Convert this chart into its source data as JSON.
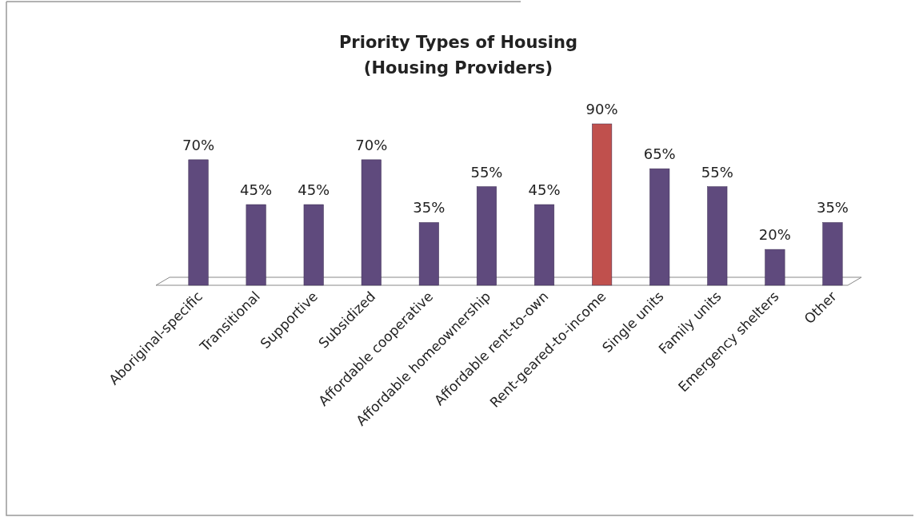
{
  "chart_data": {
    "type": "bar",
    "title": "Priority Types of Housing\n(Housing Providers)",
    "categories": [
      "Aboriginal-specific",
      "Transitional",
      "Supportive",
      "Subsidized",
      "Affordable cooperative",
      "Affordable homeownership",
      "Affordable rent-to-own",
      "Rent-geared-to-income",
      "Single units",
      "Family units",
      "Emergency shelters",
      "Other"
    ],
    "values": [
      70,
      45,
      45,
      70,
      35,
      55,
      45,
      90,
      65,
      55,
      20,
      35
    ],
    "value_labels": [
      "70%",
      "45%",
      "45%",
      "70%",
      "35%",
      "55%",
      "45%",
      "90%",
      "65%",
      "55%",
      "20%",
      "35%"
    ],
    "colors": [
      "#5f4a7d",
      "#5f4a7d",
      "#5f4a7d",
      "#5f4a7d",
      "#5f4a7d",
      "#5f4a7d",
      "#5f4a7d",
      "#c0504d",
      "#5f4a7d",
      "#5f4a7d",
      "#5f4a7d",
      "#5f4a7d"
    ],
    "grid": false
  }
}
